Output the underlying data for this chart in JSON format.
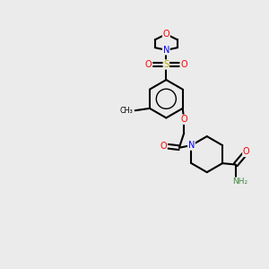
{
  "background_color": "#ebebeb",
  "bond_color": "#000000",
  "atom_colors": {
    "O": "#ff0000",
    "N": "#0000ff",
    "S": "#bbaa00",
    "C": "#000000",
    "H": "#448844"
  },
  "figsize": [
    3.0,
    3.0
  ],
  "dpi": 100
}
